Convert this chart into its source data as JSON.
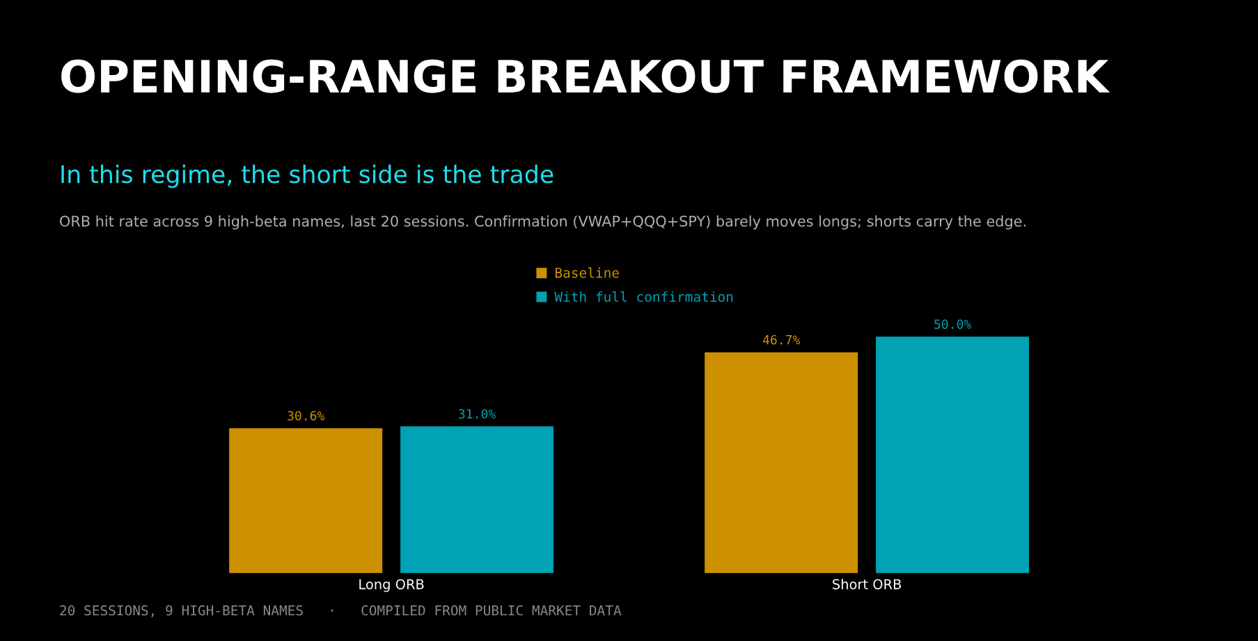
{
  "chart_data": {
    "type": "bar",
    "title": "OPENING-RANGE BREAKOUT FRAMEWORK",
    "subtitle": "In this regime, the short side is the trade",
    "annotations": [
      "ORB hit rate across 9 high-beta names, last 20 sessions. Confirmation (VWAP+QQQ+SPY) barely moves longs; shorts carry the edge.",
      "20 SESSIONS, 9 HIGH-BETA NAMES   ·   COMPILED FROM PUBLIC MARKET DATA"
    ],
    "categories": [
      "Long ORB",
      "Short ORB"
    ],
    "series": [
      {
        "name": "Baseline",
        "color": "#cc9000",
        "values": [
          30.6,
          46.7
        ],
        "value_labels": [
          "30.6%",
          "46.7%"
        ]
      },
      {
        "name": "With full confirmation",
        "color": "#00a2b4",
        "values": [
          31.0,
          50.0
        ],
        "value_labels": [
          "31.0%",
          "50.0%"
        ]
      }
    ],
    "legend": "top",
    "grid": false
  }
}
